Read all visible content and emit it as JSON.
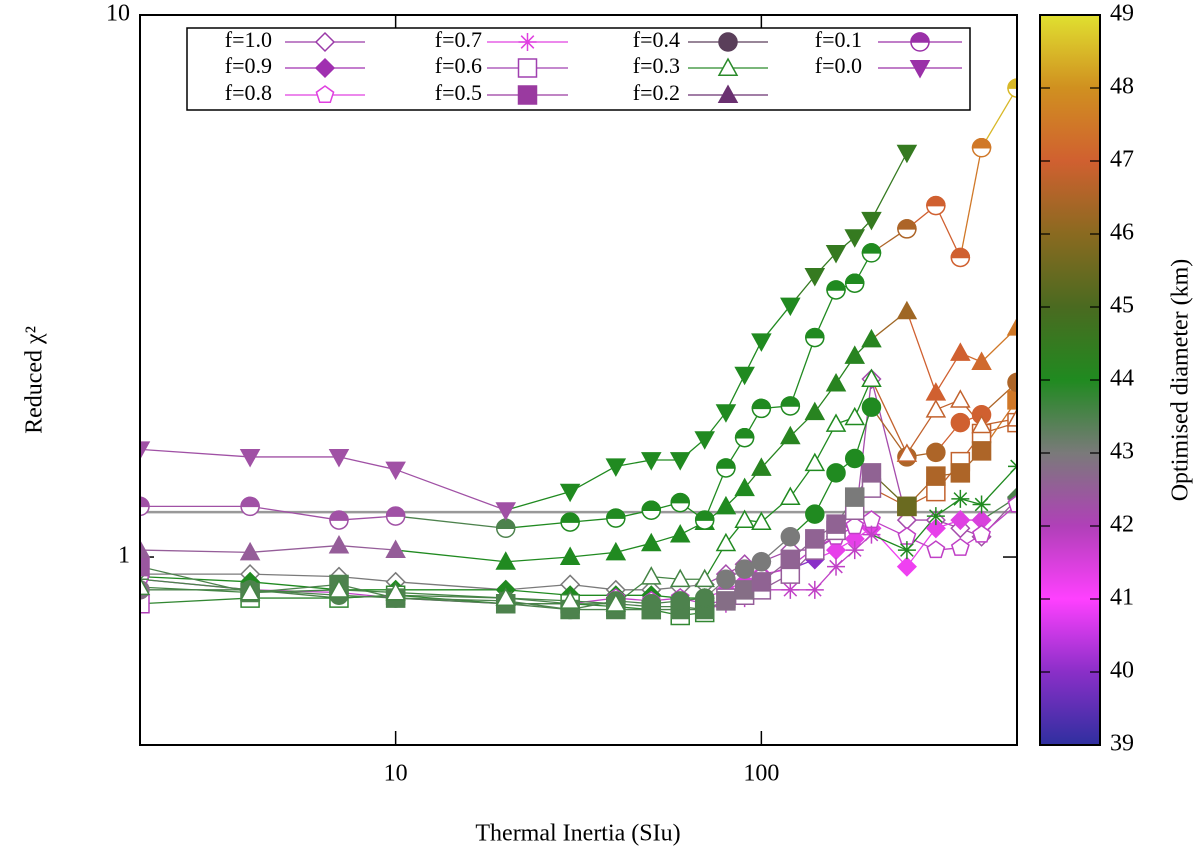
{
  "chart_data": {
    "type": "line",
    "x_label": "Thermal Inertia (SIu)",
    "y_label": "Reduced χ²",
    "xscale": "log",
    "yscale": "log",
    "xlim": [
      2,
      500
    ],
    "ylim": [
      0.45,
      10
    ],
    "xticks": [
      10,
      100
    ],
    "yticks": [
      1,
      10
    ],
    "x": [
      2,
      4,
      7,
      10,
      20,
      30,
      40,
      50,
      60,
      70,
      80,
      90,
      100,
      120,
      140,
      160,
      180,
      200,
      250,
      300,
      350,
      400,
      500
    ],
    "reference_line": {
      "value": 1.21,
      "color": "#999999"
    },
    "legend": "top",
    "colorbar": {
      "label": "Optimised diameter (km)",
      "lim": [
        39,
        49
      ],
      "ticks": [
        39,
        40,
        41,
        42,
        43,
        44,
        45,
        46,
        47,
        48,
        49
      ],
      "stops": [
        39,
        40,
        41,
        42,
        43,
        44,
        45,
        46,
        47,
        48,
        49
      ],
      "colors": [
        "#2f2f9f",
        "#8a2fc8",
        "#ff40ff",
        "#b040b8",
        "#7a7a7a",
        "#208a20",
        "#4a6a20",
        "#8a6a20",
        "#d06030",
        "#d09020",
        "#e0e030"
      ]
    },
    "series": [
      {
        "name": "f=1.0",
        "marker": "diamond-open",
        "color": "#9a3aa8",
        "values": [
          0.93,
          0.93,
          0.92,
          0.9,
          0.87,
          0.89,
          0.87,
          0.87,
          0.88,
          0.89,
          0.93,
          0.97,
          0.98,
          1.03,
          1.03,
          1.09,
          1.14,
          2.13,
          1.17,
          1.17,
          1.13,
          1.09,
          1.28
        ],
        "diameters": [
          42.3,
          43,
          43,
          43,
          43,
          43,
          43,
          43,
          43,
          43,
          42.2,
          42.2,
          42.2,
          42.2,
          42.2,
          42.2,
          42.2,
          42.2,
          42.2,
          42.2,
          42.2,
          42.3,
          42.5
        ]
      },
      {
        "name": "f=0.9",
        "marker": "diamond",
        "color": "#a030b0",
        "values": [
          0.92,
          0.9,
          0.87,
          0.87,
          0.87,
          0.85,
          0.85,
          0.85,
          0.84,
          0.84,
          0.87,
          0.9,
          0.93,
          0.95,
          0.99,
          1.03,
          1.08,
          1.13,
          0.96,
          1.13,
          1.17,
          1.17,
          1.29
        ],
        "diameters": [
          43.5,
          44,
          44,
          44,
          44,
          44,
          44,
          44,
          44,
          44,
          41.5,
          41.5,
          41.5,
          41.3,
          40,
          41.3,
          41.3,
          41.3,
          41.2,
          41.3,
          41.4,
          41.5,
          43.5
        ]
      },
      {
        "name": "f=0.8",
        "marker": "pentagon-open",
        "color": "#e040e0",
        "values": [
          0.91,
          0.87,
          0.86,
          0.84,
          0.82,
          0.82,
          0.84,
          0.83,
          0.84,
          0.82,
          0.83,
          0.87,
          0.92,
          0.96,
          1.04,
          1.09,
          1.14,
          1.17,
          1.09,
          1.03,
          1.04,
          1.1,
          1.25
        ],
        "diameters": [
          41.8,
          41.8,
          41.8,
          41.8,
          41.8,
          41.8,
          41.8,
          41.8,
          41.8,
          41.8,
          41.8,
          41.8,
          41.8,
          41.8,
          41.8,
          41.8,
          41.8,
          41.8,
          41.8,
          41.8,
          41.8,
          41.8,
          41.8
        ]
      },
      {
        "name": "f=0.7",
        "marker": "star",
        "color": "#e040e0",
        "values": [
          0.91,
          0.87,
          0.84,
          0.85,
          0.84,
          0.82,
          0.82,
          0.81,
          0.81,
          0.8,
          0.82,
          0.84,
          0.87,
          0.87,
          0.87,
          0.96,
          1.03,
          1.1,
          1.03,
          1.19,
          1.28,
          1.25,
          1.47
        ],
        "diameters": [
          43.5,
          43.5,
          43.5,
          43.5,
          43.5,
          43.5,
          43.5,
          43.5,
          43.5,
          43.5,
          41.8,
          41.8,
          41.8,
          41.8,
          41.8,
          41.8,
          41.8,
          41.8,
          44,
          44,
          44,
          44,
          44
        ]
      },
      {
        "name": "f=0.6",
        "marker": "square-open",
        "color": "#a040b0",
        "values": [
          0.82,
          0.84,
          0.84,
          0.85,
          0.82,
          0.82,
          0.81,
          0.8,
          0.78,
          0.79,
          0.84,
          0.85,
          0.87,
          0.93,
          1.03,
          1.12,
          1.22,
          1.34,
          1.24,
          1.32,
          1.5,
          1.69,
          1.77
        ],
        "diameters": [
          42,
          43.8,
          43.8,
          43.8,
          43.8,
          43.8,
          43.8,
          43.8,
          43.8,
          43.8,
          42.5,
          42.5,
          42.5,
          42.5,
          42.5,
          42.5,
          42.5,
          42.5,
          46.8,
          46.8,
          46.8,
          46.8,
          46.8
        ]
      },
      {
        "name": "f=0.5",
        "marker": "square",
        "color": "#9a3aa0",
        "values": [
          0.96,
          0.86,
          0.89,
          0.84,
          0.82,
          0.8,
          0.8,
          0.8,
          0.8,
          0.8,
          0.83,
          0.87,
          0.9,
          0.99,
          1.08,
          1.15,
          1.29,
          1.43,
          1.24,
          1.41,
          1.43,
          1.57,
          1.95
        ],
        "diameters": [
          42.4,
          43.5,
          43.5,
          43.5,
          43.5,
          43.5,
          43.5,
          43.5,
          43.5,
          43.5,
          42.8,
          42.8,
          42.6,
          42.6,
          42.6,
          42.6,
          43,
          42.6,
          45.5,
          46.5,
          46.5,
          46.5,
          47.5
        ]
      },
      {
        "name": "f=0.4",
        "marker": "circle",
        "color": "#5a3f5a",
        "values": [
          0.87,
          0.87,
          0.85,
          0.84,
          0.83,
          0.8,
          0.83,
          0.82,
          0.83,
          0.84,
          0.91,
          0.95,
          0.98,
          1.09,
          1.2,
          1.43,
          1.52,
          1.89,
          1.53,
          1.56,
          1.77,
          1.83,
          2.1
        ],
        "diameters": [
          42.8,
          43.5,
          43.5,
          43.5,
          43.5,
          43.5,
          43.5,
          43.5,
          43.5,
          43.5,
          43,
          43,
          43,
          43,
          44,
          44,
          44,
          44,
          46.5,
          46.5,
          47,
          47,
          46.5
        ]
      },
      {
        "name": "f=0.3",
        "marker": "triangle-open",
        "color": "#2a8a2a",
        "values": [
          0.88,
          0.86,
          0.87,
          0.86,
          0.84,
          0.83,
          0.82,
          0.92,
          0.91,
          0.91,
          1.06,
          1.17,
          1.16,
          1.29,
          1.49,
          1.76,
          1.81,
          2.13,
          1.55,
          1.87,
          1.95,
          1.75,
          1.8
        ],
        "diameters": [
          43.6,
          43.6,
          43.6,
          43.6,
          43.6,
          43.6,
          43.6,
          43.6,
          43.6,
          43.6,
          44,
          44,
          44,
          44,
          44,
          44,
          44,
          44,
          46.8,
          46.8,
          46.8,
          46.8,
          46.8
        ]
      },
      {
        "name": "f=0.2",
        "marker": "triangle",
        "color": "#6a3070",
        "values": [
          1.03,
          1.02,
          1.05,
          1.03,
          0.98,
          1.0,
          1.02,
          1.06,
          1.1,
          1.16,
          1.24,
          1.34,
          1.46,
          1.67,
          1.85,
          2.09,
          2.35,
          2.52,
          2.84,
          2.01,
          2.38,
          2.29,
          2.65
        ],
        "diameters": [
          42.5,
          42.5,
          42.5,
          42.5,
          44,
          44,
          44,
          44,
          44,
          44,
          44,
          44,
          44.2,
          44.2,
          44.2,
          44.2,
          44.2,
          44.2,
          46.3,
          47,
          47,
          47.2,
          47.5
        ]
      },
      {
        "name": "f=0.1",
        "marker": "half-circle",
        "color": "#9a30a8",
        "values": [
          1.24,
          1.24,
          1.17,
          1.19,
          1.13,
          1.16,
          1.18,
          1.22,
          1.26,
          1.17,
          1.46,
          1.66,
          1.88,
          1.9,
          2.54,
          3.11,
          3.2,
          3.64,
          4.03,
          4.45,
          3.57,
          5.69,
          7.33
        ],
        "diameters": [
          42.3,
          42.3,
          42.3,
          42.3,
          43.5,
          44,
          44,
          44,
          44,
          44,
          44,
          44,
          44,
          44,
          44,
          44,
          44,
          44,
          46.5,
          47,
          47,
          47.5,
          48.5
        ]
      },
      {
        "name": "f=0.0",
        "marker": "triangle-down",
        "color": "#9a30a8",
        "values": [
          1.58,
          1.53,
          1.53,
          1.45,
          1.22,
          1.32,
          1.47,
          1.51,
          1.51,
          1.65,
          1.85,
          2.17,
          2.5,
          2.91,
          3.3,
          3.64,
          3.89,
          4.19,
          5.57,
          null,
          null,
          null,
          null
        ],
        "diameters": [
          42.3,
          42.3,
          42.3,
          42.3,
          42.3,
          44,
          44,
          44,
          44,
          44,
          44,
          44,
          44,
          44,
          44.5,
          44.5,
          44.5,
          44.5,
          44.5,
          null,
          null,
          null,
          null
        ]
      }
    ]
  }
}
